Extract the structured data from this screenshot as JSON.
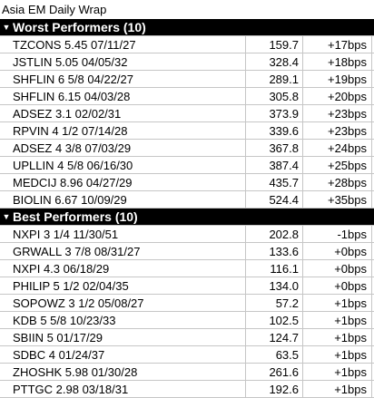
{
  "title": "Asia EM Daily Wrap",
  "sections": [
    {
      "header": "Worst Performers (10)",
      "rows": [
        {
          "name": "TZCONS 5.45 07/11/27",
          "price": "159.7",
          "change": "+17bps"
        },
        {
          "name": "JSTLIN 5.05 04/05/32",
          "price": "328.4",
          "change": "+18bps"
        },
        {
          "name": "SHFLIN 6 5/8 04/22/27",
          "price": "289.1",
          "change": "+19bps"
        },
        {
          "name": "SHFLIN 6.15 04/03/28",
          "price": "305.8",
          "change": "+20bps"
        },
        {
          "name": "ADSEZ 3.1 02/02/31",
          "price": "373.9",
          "change": "+23bps"
        },
        {
          "name": "RPVIN 4 1/2 07/14/28",
          "price": "339.6",
          "change": "+23bps"
        },
        {
          "name": "ADSEZ 4 3/8 07/03/29",
          "price": "367.8",
          "change": "+24bps"
        },
        {
          "name": "UPLLIN 4 5/8 06/16/30",
          "price": "387.4",
          "change": "+25bps"
        },
        {
          "name": "MEDCIJ 8.96 04/27/29",
          "price": "435.7",
          "change": "+28bps"
        },
        {
          "name": "BIOLIN 6.67 10/09/29",
          "price": "524.4",
          "change": "+35bps"
        }
      ]
    },
    {
      "header": "Best Performers (10)",
      "rows": [
        {
          "name": "NXPI 3 1/4 11/30/51",
          "price": "202.8",
          "change": "-1bps"
        },
        {
          "name": "GRWALL 3 7/8 08/31/27",
          "price": "133.6",
          "change": "+0bps"
        },
        {
          "name": "NXPI 4.3 06/18/29",
          "price": "116.1",
          "change": "+0bps"
        },
        {
          "name": "PHILIP 5 1/2 02/04/35",
          "price": "134.0",
          "change": "+0bps"
        },
        {
          "name": "SOPOWZ 3 1/2 05/08/27",
          "price": "57.2",
          "change": "+1bps"
        },
        {
          "name": "KDB 5 5/8 10/23/33",
          "price": "102.5",
          "change": "+1bps"
        },
        {
          "name": "SBIIN 5 01/17/29",
          "price": "124.7",
          "change": "+1bps"
        },
        {
          "name": "SDBC 4 01/24/37",
          "price": "63.5",
          "change": "+1bps"
        },
        {
          "name": "ZHOSHK 5.98 01/30/28",
          "price": "261.6",
          "change": "+1bps"
        },
        {
          "name": "PTTGC 2.98 03/18/31",
          "price": "192.6",
          "change": "+1bps"
        }
      ]
    }
  ],
  "icons": {
    "section_toggle": "chevron-down-icon"
  },
  "colors": {
    "header_bg": "#000000",
    "header_text": "#ffffff",
    "grid_line": "#c6c6c6"
  }
}
